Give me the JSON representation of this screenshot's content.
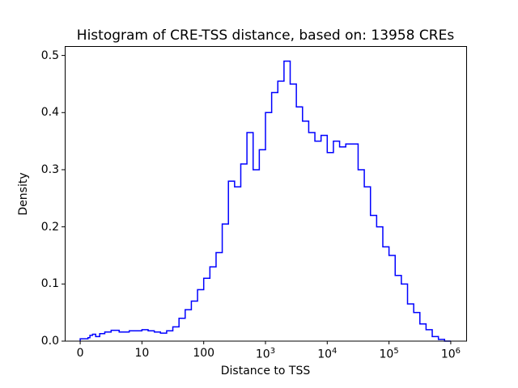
{
  "chart_data": {
    "type": "histogram",
    "title": "Histogram of CRE-TSS distance, based on: 13958 CREs",
    "xlabel": "Distance to TSS",
    "ylabel": "Density",
    "x_scale": "symlog",
    "linthresh": 10,
    "xlim_axis_units": [
      -0.25,
      6.25
    ],
    "ylim": [
      0,
      0.515
    ],
    "line_color": "#0000ff",
    "axis_color": "#000000",
    "background_color": "#ffffff",
    "legend": "none",
    "grid": false,
    "bin_edges": [
      0,
      1.26,
      1.58,
      2.0,
      2.51,
      3.16,
      3.98,
      5.01,
      6.31,
      7.94,
      10,
      12.59,
      15.85,
      19.95,
      25.12,
      31.62,
      39.81,
      50.12,
      63.1,
      79.43,
      100,
      125.9,
      158.5,
      199.5,
      251.2,
      316.2,
      398.1,
      501.2,
      631,
      794.3,
      1000,
      1259,
      1585,
      1995,
      2512,
      3162,
      3981,
      5012,
      6310,
      7943,
      10000,
      12589,
      15849,
      19953,
      25119,
      31623,
      39811,
      50119,
      63096,
      79433,
      100000,
      125893,
      158489,
      199526,
      251189,
      316228,
      398107,
      501187,
      630957,
      794328,
      1000000
    ],
    "densities": [
      0.004,
      0.006,
      0.01,
      0.012,
      0.008,
      0.013,
      0.016,
      0.019,
      0.016,
      0.018,
      0.02,
      0.018,
      0.016,
      0.014,
      0.018,
      0.025,
      0.04,
      0.055,
      0.07,
      0.09,
      0.11,
      0.13,
      0.155,
      0.205,
      0.28,
      0.27,
      0.31,
      0.365,
      0.3,
      0.335,
      0.4,
      0.435,
      0.455,
      0.49,
      0.45,
      0.41,
      0.385,
      0.365,
      0.35,
      0.36,
      0.33,
      0.35,
      0.34,
      0.345,
      0.345,
      0.3,
      0.27,
      0.22,
      0.2,
      0.165,
      0.15,
      0.115,
      0.1,
      0.065,
      0.05,
      0.03,
      0.02,
      0.008,
      0.003,
      0.0
    ],
    "x_ticks": [
      {
        "value": 0,
        "base": "0",
        "sup": ""
      },
      {
        "value": 10,
        "base": "10",
        "sup": ""
      },
      {
        "value": 100,
        "base": "100",
        "sup": ""
      },
      {
        "value": 1000,
        "base": "10",
        "sup": "3"
      },
      {
        "value": 10000,
        "base": "10",
        "sup": "4"
      },
      {
        "value": 100000,
        "base": "10",
        "sup": "5"
      },
      {
        "value": 1000000,
        "base": "10",
        "sup": "6"
      }
    ],
    "y_ticks": [
      {
        "value": 0.0,
        "label": "0.0"
      },
      {
        "value": 0.1,
        "label": "0.1"
      },
      {
        "value": 0.2,
        "label": "0.2"
      },
      {
        "value": 0.3,
        "label": "0.3"
      },
      {
        "value": 0.4,
        "label": "0.4"
      },
      {
        "value": 0.5,
        "label": "0.5"
      }
    ]
  }
}
